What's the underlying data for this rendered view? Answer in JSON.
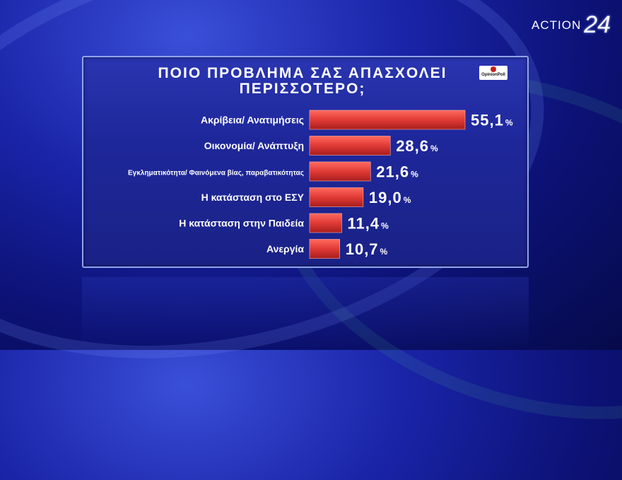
{
  "brand": {
    "name": "ACTION",
    "number": "24"
  },
  "badge": {
    "text": "OpinionPoll"
  },
  "colors": {
    "bar": "#e03a36",
    "bar_dark": "#a81e1c",
    "text": "#ffffff"
  },
  "chart_data": {
    "type": "bar",
    "orientation": "horizontal",
    "title": "ΠΟΙΟ ΠΡΟΒΛΗΜΑ ΣΑΣ ΑΠΑΣΧΟΛΕΙ ΠΕΡΙΣΣΟΤΕΡΟ;",
    "categories": [
      "Ακρίβεια/ Ανατιμήσεις",
      "Οικονομία/ Ανάπτυξη",
      "Εγκληματικότητα/ Φαινόμενα βίας, παραβατικότητας",
      "Η κατάσταση στο ΕΣΥ",
      "Η κατάσταση στην Παιδεία",
      "Ανεργία"
    ],
    "values": [
      55.1,
      28.6,
      21.6,
      19.0,
      11.4,
      10.7
    ],
    "value_labels": [
      "55,1",
      "28,6",
      "21,6",
      "19,0",
      "11,4",
      "10,7"
    ],
    "unit": "%",
    "xlim": [
      0,
      100
    ],
    "grid": false
  }
}
